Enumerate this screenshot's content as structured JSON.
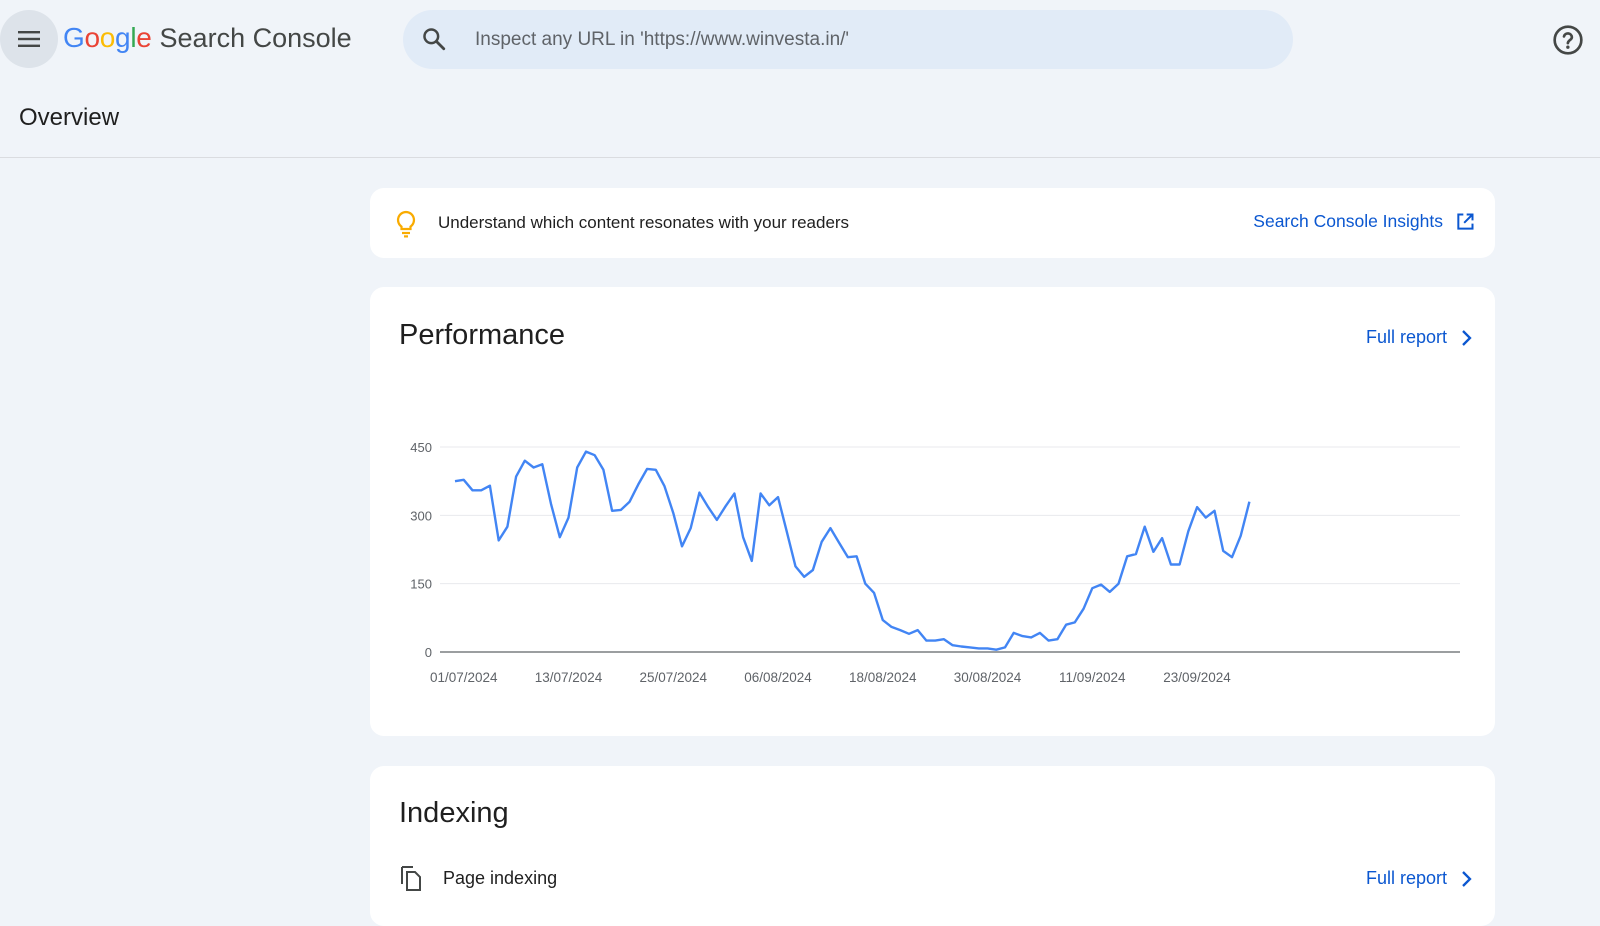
{
  "header": {
    "logo_google": [
      "G",
      "o",
      "o",
      "g",
      "l",
      "e"
    ],
    "logo_colors": [
      "#4285F4",
      "#EA4335",
      "#FBBC05",
      "#4285F4",
      "#34A853",
      "#EA4335"
    ],
    "product_name": "Search Console",
    "search_placeholder": "Inspect any URL in 'https://www.winvesta.in/'"
  },
  "page": {
    "title": "Overview"
  },
  "insights": {
    "message": "Understand which content resonates with your readers",
    "link_label": "Search Console Insights"
  },
  "performance": {
    "title": "Performance",
    "full_report_label": "Full report"
  },
  "chart_data": {
    "type": "line",
    "line_color": "#4285F4",
    "ylim": [
      0,
      450
    ],
    "yticks": [
      "0",
      "150",
      "300",
      "450"
    ],
    "xticks": [
      "01/07/2024",
      "13/07/2024",
      "25/07/2024",
      "06/08/2024",
      "18/08/2024",
      "30/08/2024",
      "11/09/2024",
      "23/09/2024"
    ],
    "grid": true,
    "x_start": "2024-06-30",
    "x_step_days": 1,
    "values": [
      375,
      378,
      355,
      355,
      365,
      245,
      275,
      385,
      420,
      405,
      412,
      325,
      252,
      295,
      405,
      440,
      432,
      400,
      310,
      312,
      330,
      368,
      402,
      400,
      364,
      305,
      232,
      272,
      350,
      318,
      290,
      320,
      348,
      252,
      200,
      348,
      322,
      340,
      265,
      188,
      165,
      180,
      242,
      272,
      240,
      208,
      210,
      150,
      130,
      70,
      55,
      48,
      40,
      48,
      25,
      25,
      28,
      15,
      12,
      10,
      8,
      8,
      5,
      10,
      42,
      35,
      32,
      42,
      25,
      28,
      60,
      65,
      95,
      140,
      148,
      132,
      150,
      210,
      215,
      275,
      220,
      250,
      192,
      192,
      265,
      318,
      295,
      310,
      222,
      208,
      255,
      330
    ]
  },
  "indexing": {
    "title": "Indexing",
    "row_label": "Page indexing",
    "full_report_label": "Full report"
  }
}
